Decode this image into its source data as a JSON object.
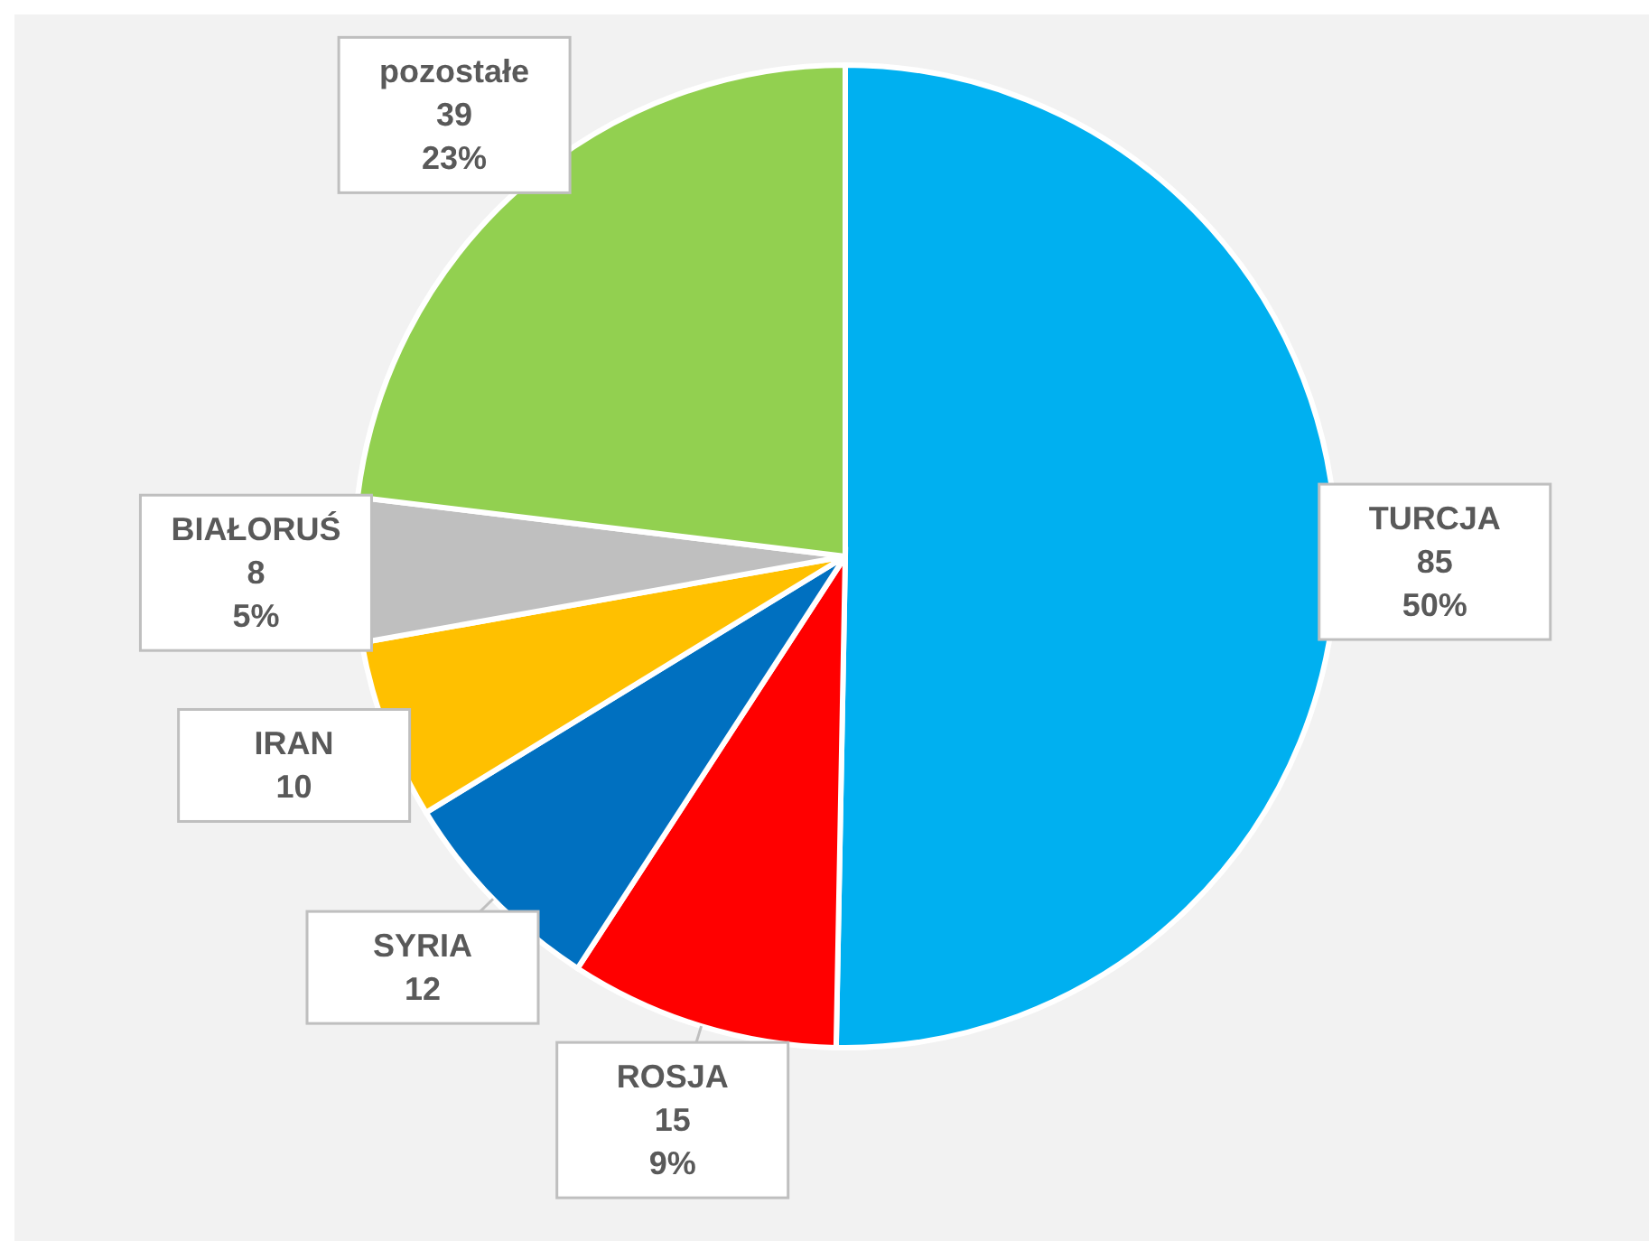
{
  "chart_data": {
    "type": "pie",
    "categories": [
      "TURCJA",
      "ROSJA",
      "SYRIA",
      "IRAN",
      "BIAŁORUŚ",
      "pozostałe"
    ],
    "values": [
      85,
      15,
      12,
      10,
      8,
      39
    ],
    "colors": [
      "#00b0f0",
      "#ff0000",
      "#0070c0",
      "#ffc000",
      "#bfbfbf",
      "#92d050"
    ],
    "value_labels": [
      "85\n50%",
      "15\n9%",
      "12",
      "10",
      "8\n5%",
      "39\n23%"
    ]
  }
}
